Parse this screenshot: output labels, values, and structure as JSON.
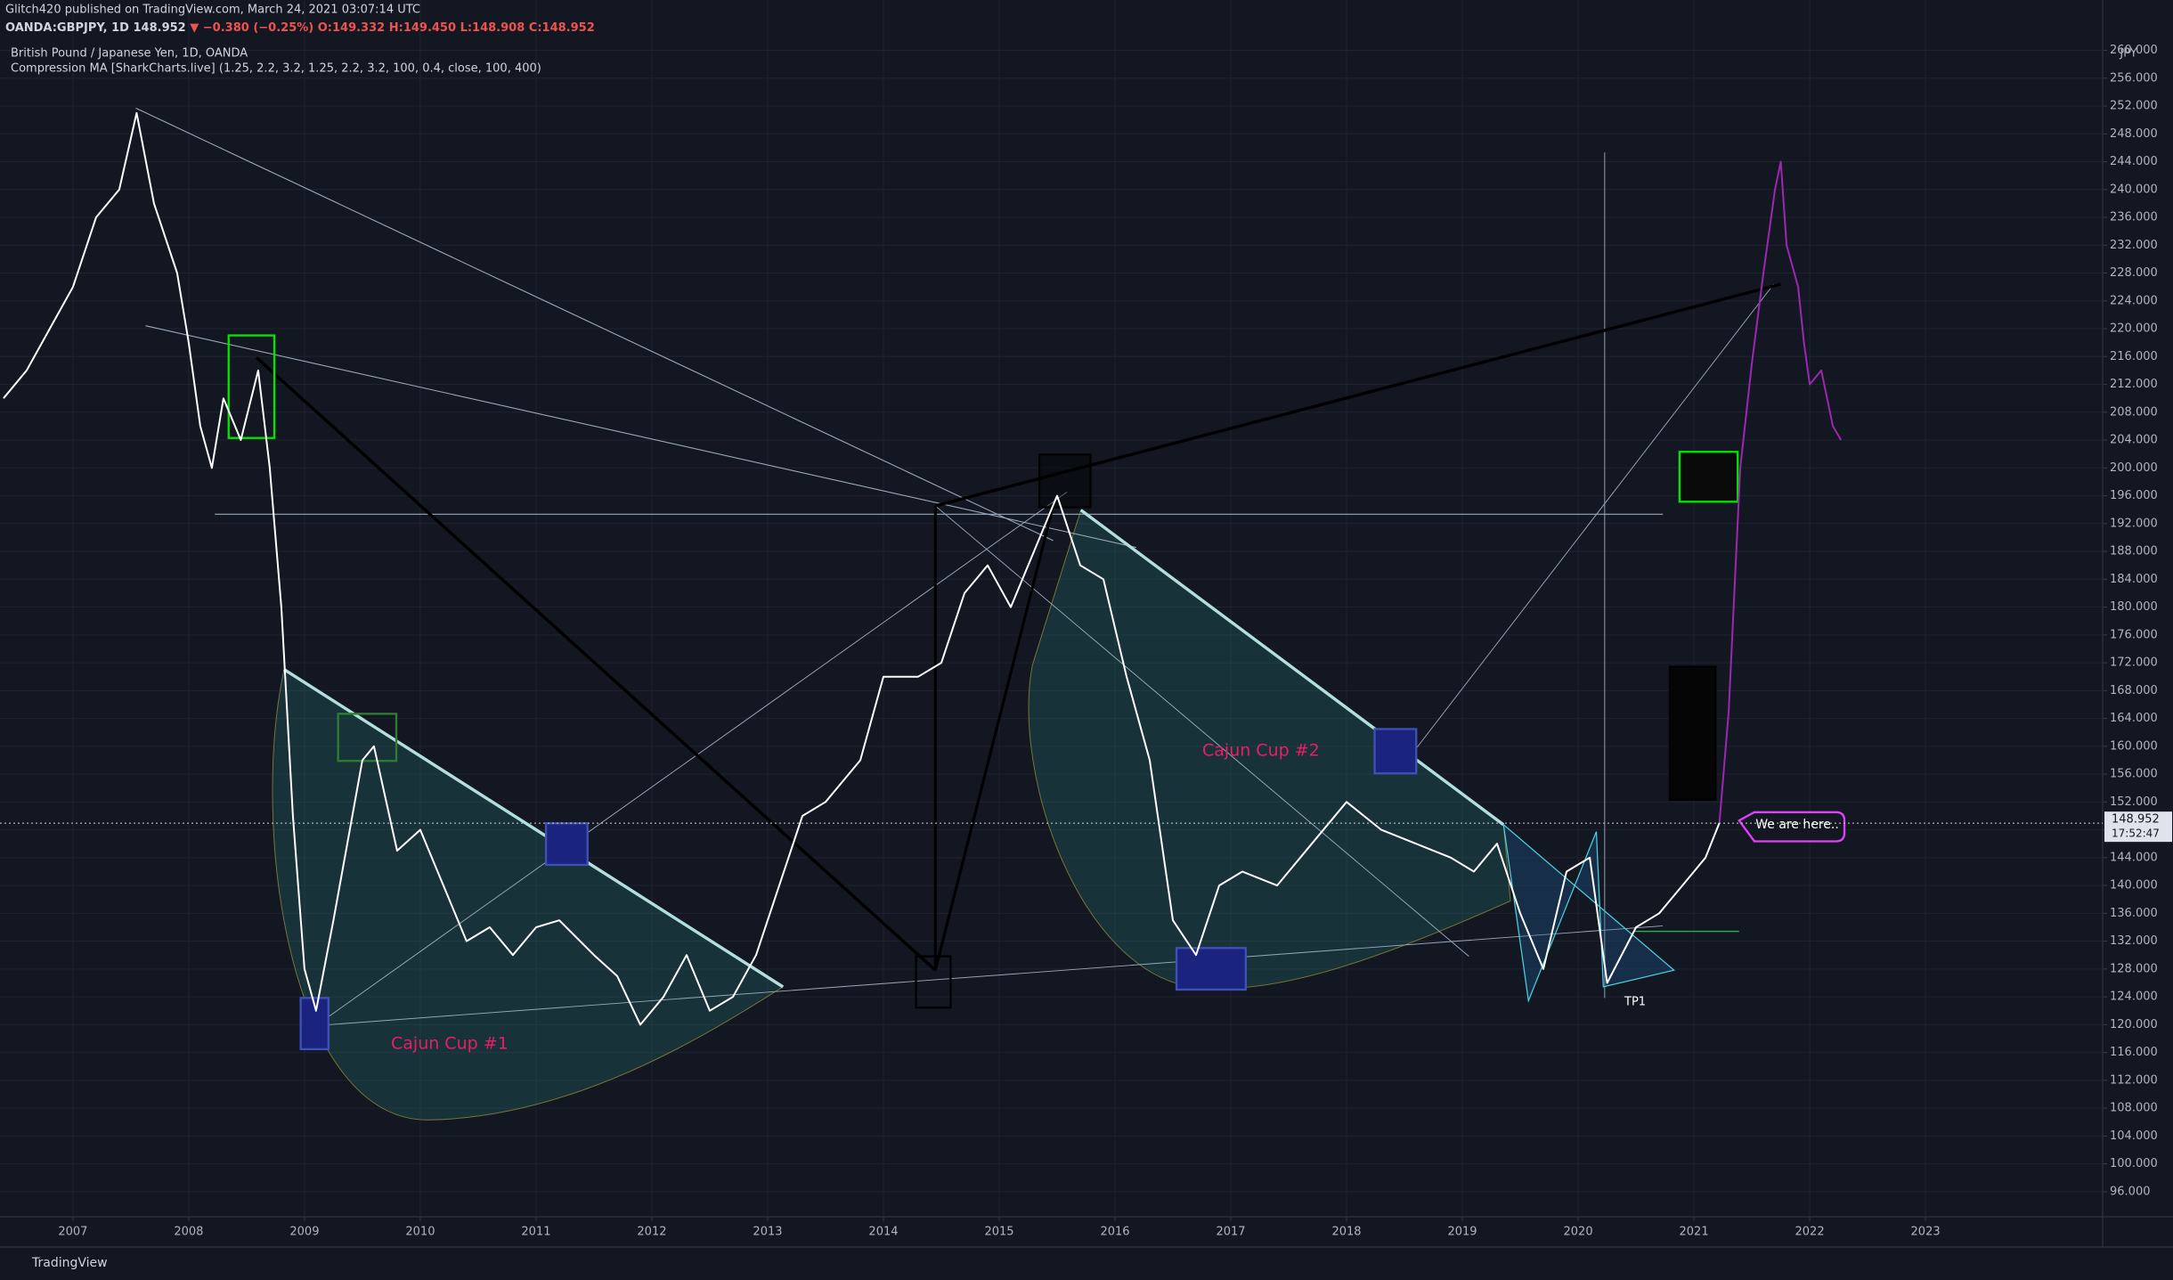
{
  "header": {
    "publisher": "Glitch420 published on TradingView.com, March 24, 2021 03:07:14 UTC",
    "symbol": "OANDA:GBPJPY, 1D",
    "last": "148.952",
    "change": "▼ −0.380 (−0.25%)",
    "open": "O:149.332",
    "high": "H:149.450",
    "low": "L:148.908",
    "close": "C:148.952"
  },
  "footer": {
    "brand": "TradingView"
  },
  "chart_data": {
    "type": "line",
    "title": "British Pound / Japanese Yen, 1D, OANDA",
    "subtitle": "Compression MA [SharkCharts.live] (1.25, 2.2, 3.2, 1.25, 2.2, 3.2, 100, 0.4, close, 100, 400)",
    "y_unit": "JPY",
    "annotations": [
      "Cajun Cup #1",
      "Cajun Cup #2",
      "We are here..",
      "TP1"
    ],
    "last_price": 148.952,
    "countdown": "17:52:47",
    "grid": true,
    "xlim": [
      2006.37,
      2024.53
    ],
    "xticks": [
      2007,
      2008,
      2009,
      2010,
      2011,
      2012,
      2013,
      2014,
      2015,
      2016,
      2017,
      2018,
      2019,
      2020,
      2021,
      2022,
      2023
    ],
    "ylim": [
      92.4,
      261.6
    ],
    "yticks": [
      {
        "value": 96,
        "label": "96.000"
      },
      {
        "value": 100,
        "label": "100.000"
      },
      {
        "value": 104,
        "label": "104.000"
      },
      {
        "value": 108,
        "label": "108.000"
      },
      {
        "value": 112,
        "label": "112.000"
      },
      {
        "value": 116,
        "label": "116.000"
      },
      {
        "value": 120,
        "label": "120.000"
      },
      {
        "value": 124,
        "label": "124.000"
      },
      {
        "value": 128,
        "label": "128.000"
      },
      {
        "value": 132,
        "label": "132.000"
      },
      {
        "value": 136,
        "label": "136.000"
      },
      {
        "value": 140,
        "label": "140.000"
      },
      {
        "value": 144,
        "label": "144.000"
      },
      {
        "value": 148,
        "label": "148.000"
      },
      {
        "value": 152,
        "label": "152.000"
      },
      {
        "value": 156,
        "label": "156.000"
      },
      {
        "value": 160,
        "label": "160.000"
      },
      {
        "value": 164,
        "label": "164.000"
      },
      {
        "value": 168,
        "label": "168.000"
      },
      {
        "value": 172,
        "label": "172.000"
      },
      {
        "value": 176,
        "label": "176.000"
      },
      {
        "value": 180,
        "label": "180.000"
      },
      {
        "value": 184,
        "label": "184.000"
      },
      {
        "value": 188,
        "label": "188.000"
      },
      {
        "value": 192,
        "label": "192.000"
      },
      {
        "value": 196,
        "label": "196.000"
      },
      {
        "value": 200,
        "label": "200.000"
      },
      {
        "value": 204,
        "label": "204.000"
      },
      {
        "value": 208,
        "label": "208.000"
      },
      {
        "value": 212,
        "label": "212.000"
      },
      {
        "value": 216,
        "label": "216.000"
      },
      {
        "value": 220,
        "label": "220.000"
      },
      {
        "value": 224,
        "label": "224.000"
      },
      {
        "value": 228,
        "label": "228.000"
      },
      {
        "value": 232,
        "label": "232.000"
      },
      {
        "value": 236,
        "label": "236.000"
      },
      {
        "value": 240,
        "label": "240.000"
      },
      {
        "value": 244,
        "label": "244.000"
      },
      {
        "value": 248,
        "label": "248.000"
      },
      {
        "value": 252,
        "label": "252.000"
      },
      {
        "value": 256,
        "label": "256.000"
      },
      {
        "value": 260,
        "label": "260.000"
      }
    ],
    "series": [
      {
        "color": "#ffffff",
        "x": [
          2006.4,
          2006.6,
          2006.8,
          2007.0,
          2007.2,
          2007.4,
          2007.55,
          2007.7,
          2007.9,
          2008.0,
          2008.1,
          2008.2,
          2008.3,
          2008.45,
          2008.6,
          2008.7,
          2008.8,
          2008.9,
          2009.0,
          2009.1,
          2009.25,
          2009.5,
          2009.6,
          2009.8,
          2010.0,
          2010.2,
          2010.4,
          2010.6,
          2010.8,
          2011.0,
          2011.2,
          2011.5,
          2011.7,
          2011.9,
          2012.1,
          2012.3,
          2012.5,
          2012.7,
          2012.9,
          2013.1,
          2013.3,
          2013.5,
          2013.8,
          2014.0,
          2014.3,
          2014.5,
          2014.7,
          2014.9,
          2015.1,
          2015.3,
          2015.5,
          2015.7,
          2015.9,
          2016.1,
          2016.3,
          2016.5,
          2016.7,
          2016.9,
          2017.1,
          2017.4,
          2017.7,
          2018.0,
          2018.3,
          2018.6,
          2018.9,
          2019.1,
          2019.3,
          2019.5,
          2019.7,
          2019.9,
          2020.1,
          2020.25,
          2020.5,
          2020.7,
          2020.9,
          2021.1,
          2021.22
        ],
        "values": [
          210,
          214,
          220,
          226,
          236,
          240,
          251,
          238,
          228,
          218,
          206,
          200,
          210,
          204,
          214,
          200,
          180,
          150,
          128,
          122,
          135,
          158,
          160,
          145,
          148,
          140,
          132,
          134,
          130,
          134,
          135,
          130,
          127,
          120,
          124,
          130,
          122,
          124,
          130,
          140,
          150,
          152,
          158,
          170,
          170,
          172,
          182,
          186,
          180,
          188,
          196,
          186,
          184,
          170,
          158,
          135,
          130,
          140,
          142,
          140,
          146,
          152,
          148,
          146,
          144,
          142,
          146,
          136,
          128,
          142,
          144,
          126,
          134,
          136,
          140,
          144,
          149
        ]
      },
      {
        "color": "#9c27b0",
        "x": [
          2021.22,
          2021.3,
          2021.4,
          2021.5,
          2021.6,
          2021.7,
          2021.75,
          2021.8,
          2021.9,
          2021.95,
          2022.0,
          2022.1,
          2022.2,
          2022.27
        ],
        "values": [
          149,
          165,
          200,
          215,
          228,
          240,
          244,
          232,
          226,
          218,
          212,
          214,
          206,
          204
        ]
      }
    ]
  }
}
